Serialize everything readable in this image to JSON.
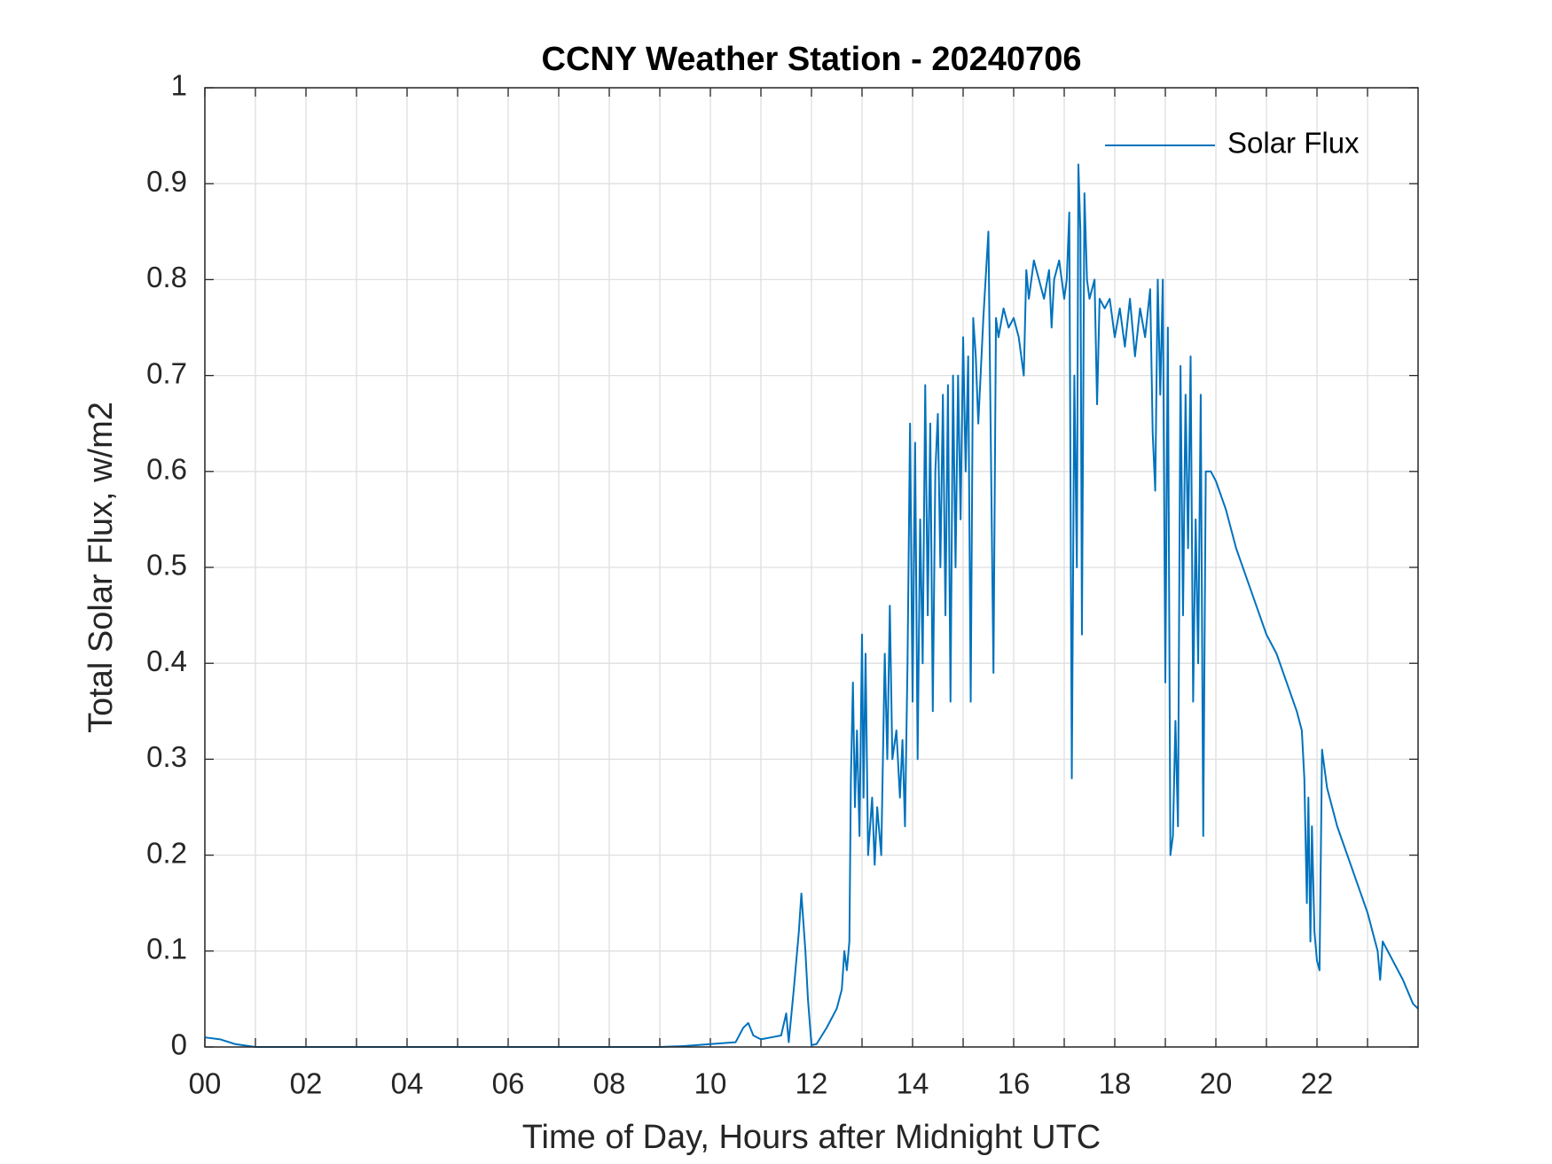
{
  "chart_data": {
    "type": "line",
    "title": "CCNY Weather Station - 20240706",
    "xlabel": "Time of Day, Hours after Midnight UTC",
    "ylabel": "Total Solar Flux, w/m2",
    "xlim": [
      0,
      24
    ],
    "xticks": [
      {
        "value": 0,
        "label": "00"
      },
      {
        "value": 2,
        "label": "02"
      },
      {
        "value": 4,
        "label": "04"
      },
      {
        "value": 6,
        "label": "06"
      },
      {
        "value": 8,
        "label": "08"
      },
      10,
      12,
      14,
      16,
      18,
      20,
      22
    ],
    "xminorticks": [
      1,
      3,
      5,
      7,
      9,
      11,
      13,
      15,
      17,
      19,
      21,
      23
    ],
    "ylim": [
      0,
      1
    ],
    "yticks": [
      0,
      0.1,
      0.2,
      0.3,
      0.4,
      0.5,
      0.6,
      0.7,
      0.8,
      0.9,
      1
    ],
    "grid": true,
    "legend": "upper right",
    "x": [
      0,
      0.3,
      0.6,
      1.0,
      9.0,
      9.5,
      10.0,
      10.5,
      10.65,
      10.75,
      10.85,
      11.0,
      11.2,
      11.4,
      11.5,
      11.55,
      11.65,
      11.75,
      11.8,
      11.88,
      11.93,
      12.0,
      12.1,
      12.3,
      12.5,
      12.6,
      12.65,
      12.7,
      12.75,
      12.78,
      12.82,
      12.86,
      12.9,
      12.95,
      13.0,
      13.03,
      13.07,
      13.12,
      13.2,
      13.25,
      13.3,
      13.38,
      13.45,
      13.5,
      13.55,
      13.6,
      13.68,
      13.75,
      13.8,
      13.85,
      13.9,
      13.95,
      14.0,
      14.05,
      14.1,
      14.15,
      14.2,
      14.25,
      14.3,
      14.35,
      14.4,
      14.45,
      14.5,
      14.55,
      14.6,
      14.65,
      14.7,
      14.75,
      14.8,
      14.85,
      14.9,
      14.95,
      15.0,
      15.05,
      15.1,
      15.15,
      15.2,
      15.25,
      15.3,
      15.4,
      15.5,
      15.55,
      15.6,
      15.65,
      15.7,
      15.8,
      15.9,
      16.0,
      16.1,
      16.2,
      16.25,
      16.3,
      16.4,
      16.5,
      16.6,
      16.7,
      16.75,
      16.8,
      16.9,
      17.0,
      17.05,
      17.1,
      17.15,
      17.2,
      17.25,
      17.28,
      17.32,
      17.35,
      17.4,
      17.45,
      17.5,
      17.6,
      17.65,
      17.7,
      17.8,
      17.9,
      18.0,
      18.1,
      18.2,
      18.3,
      18.4,
      18.5,
      18.6,
      18.7,
      18.75,
      18.8,
      18.85,
      18.9,
      18.95,
      19.0,
      19.05,
      19.1,
      19.15,
      19.2,
      19.25,
      19.3,
      19.35,
      19.4,
      19.45,
      19.5,
      19.55,
      19.6,
      19.65,
      19.7,
      19.75,
      19.8,
      19.9,
      20.0,
      20.2,
      20.4,
      20.6,
      20.8,
      21.0,
      21.2,
      21.4,
      21.6,
      21.7,
      21.75,
      21.8,
      21.83,
      21.87,
      21.9,
      21.95,
      22.0,
      22.05,
      22.1,
      22.2,
      22.4,
      22.6,
      22.8,
      23.0,
      23.2,
      23.25,
      23.3,
      23.5,
      23.7,
      23.9,
      24.0
    ],
    "series": [
      {
        "name": "Solar Flux",
        "color": "#0072bd",
        "values": [
          0.01,
          0.008,
          0.003,
          0.0,
          0,
          0.001,
          0.003,
          0.005,
          0.02,
          0.025,
          0.012,
          0.008,
          0.01,
          0.012,
          0.035,
          0.005,
          0.06,
          0.12,
          0.16,
          0.1,
          0.05,
          0.002,
          0.003,
          0.02,
          0.04,
          0.06,
          0.1,
          0.08,
          0.11,
          0.28,
          0.38,
          0.25,
          0.33,
          0.22,
          0.43,
          0.26,
          0.41,
          0.2,
          0.26,
          0.19,
          0.25,
          0.2,
          0.41,
          0.3,
          0.46,
          0.3,
          0.33,
          0.26,
          0.32,
          0.23,
          0.4,
          0.65,
          0.36,
          0.63,
          0.3,
          0.55,
          0.4,
          0.69,
          0.45,
          0.65,
          0.35,
          0.6,
          0.66,
          0.5,
          0.68,
          0.45,
          0.69,
          0.36,
          0.7,
          0.5,
          0.7,
          0.55,
          0.74,
          0.6,
          0.72,
          0.36,
          0.76,
          0.72,
          0.65,
          0.76,
          0.85,
          0.62,
          0.39,
          0.76,
          0.74,
          0.77,
          0.75,
          0.76,
          0.74,
          0.7,
          0.81,
          0.78,
          0.82,
          0.8,
          0.78,
          0.81,
          0.75,
          0.8,
          0.82,
          0.78,
          0.8,
          0.87,
          0.28,
          0.7,
          0.5,
          0.92,
          0.85,
          0.43,
          0.89,
          0.8,
          0.78,
          0.8,
          0.67,
          0.78,
          0.77,
          0.78,
          0.74,
          0.77,
          0.73,
          0.78,
          0.72,
          0.77,
          0.74,
          0.79,
          0.64,
          0.58,
          0.8,
          0.68,
          0.8,
          0.38,
          0.75,
          0.2,
          0.22,
          0.34,
          0.23,
          0.71,
          0.45,
          0.68,
          0.52,
          0.72,
          0.36,
          0.55,
          0.4,
          0.68,
          0.22,
          0.6,
          0.6,
          0.59,
          0.56,
          0.52,
          0.49,
          0.46,
          0.43,
          0.41,
          0.38,
          0.35,
          0.33,
          0.28,
          0.15,
          0.26,
          0.11,
          0.23,
          0.12,
          0.09,
          0.08,
          0.31,
          0.27,
          0.23,
          0.2,
          0.17,
          0.14,
          0.1,
          0.07,
          0.11,
          0.09,
          0.07,
          0.045,
          0.04
        ]
      }
    ]
  }
}
